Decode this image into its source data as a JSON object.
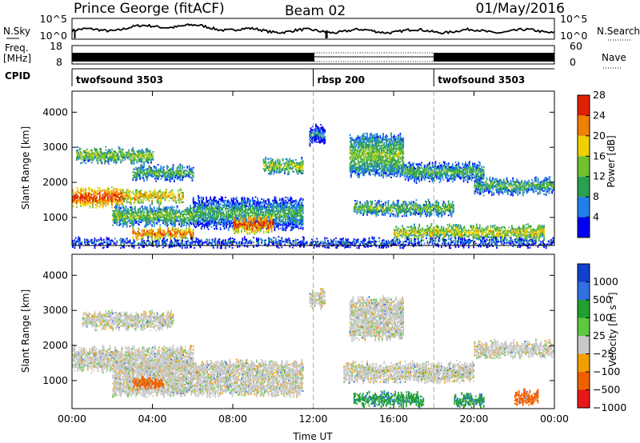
{
  "header": {
    "station": "Prince George (fitACF)",
    "beam": "Beam 02",
    "date": "01/May/2016"
  },
  "chart_data": [
    {
      "type": "line",
      "panel": "noise",
      "left_label": "N.Sky",
      "right_label": "N.Search",
      "left_ticks": [
        "10^5",
        "10^0"
      ],
      "right_ticks": [
        "10^5",
        "10^0"
      ]
    },
    {
      "type": "bar",
      "panel": "frequency",
      "left_label_lines": [
        "Freq.",
        "[MHz]"
      ],
      "left_ticks": [
        "18",
        "8"
      ],
      "right_label": "Nave",
      "right_ticks": [
        "60",
        "0"
      ],
      "segments": [
        {
          "start_hours": 0.0,
          "end_hours": 12.05,
          "freq_mhz": 10.5,
          "nave": 30
        },
        {
          "start_hours": 12.05,
          "end_hours": 18.0,
          "freq_mhz": 10.5,
          "nave": 0
        },
        {
          "start_hours": 18.0,
          "end_hours": 24.0,
          "freq_mhz": 10.5,
          "nave": 30
        }
      ]
    },
    {
      "type": "table",
      "panel": "cpid",
      "label": "CPID",
      "entries": [
        {
          "start_hours": 0.0,
          "label": "twofsound 3503"
        },
        {
          "start_hours": 12.0,
          "label": "rbsp 200"
        },
        {
          "start_hours": 18.0,
          "label": "twofsound 3503"
        }
      ]
    },
    {
      "type": "heatmap",
      "panel": "power",
      "ylabel": "Slant Range [km]",
      "y_ticks": [
        "1000",
        "2000",
        "3000",
        "4000"
      ],
      "ylim": [
        200,
        4600
      ],
      "colorbar_label": "Power [dB]",
      "colorbar_ticks": [
        "4",
        "8",
        "12",
        "16",
        "20",
        "24",
        "28"
      ],
      "colorbar_colors": [
        "#0000f0",
        "#2080e8",
        "#2aa050",
        "#70c030",
        "#f0d000",
        "#f08000",
        "#e02000"
      ],
      "echo_bands": [
        {
          "t0": 0.0,
          "t1": 2.5,
          "r0": 1350,
          "r1": 1750,
          "db": 27
        },
        {
          "t0": 2.5,
          "t1": 5.5,
          "r0": 1450,
          "r1": 1700,
          "db": 22
        },
        {
          "t0": 0.2,
          "t1": 4.0,
          "r0": 2600,
          "r1": 2900,
          "db": 17
        },
        {
          "t0": 3.0,
          "t1": 6.0,
          "r0": 2100,
          "r1": 2400,
          "db": 14
        },
        {
          "t0": 2.0,
          "t1": 6.0,
          "r0": 800,
          "r1": 1250,
          "db": 15
        },
        {
          "t0": 6.0,
          "t1": 11.5,
          "r0": 700,
          "r1": 1500,
          "db": 12
        },
        {
          "t0": 8.0,
          "t1": 10.0,
          "r0": 600,
          "r1": 950,
          "db": 26
        },
        {
          "t0": 3.0,
          "t1": 6.0,
          "r0": 400,
          "r1": 650,
          "db": 25
        },
        {
          "t0": 9.5,
          "t1": 11.5,
          "r0": 2300,
          "r1": 2600,
          "db": 17
        },
        {
          "t0": 11.8,
          "t1": 12.6,
          "r0": 3100,
          "r1": 3550,
          "db": 9
        },
        {
          "t0": 13.8,
          "t1": 16.5,
          "r0": 2200,
          "r1": 3300,
          "db": 15
        },
        {
          "t0": 16.5,
          "t1": 20.5,
          "r0": 2050,
          "r1": 2500,
          "db": 13
        },
        {
          "t0": 14.0,
          "t1": 19.0,
          "r0": 1100,
          "r1": 1400,
          "db": 15
        },
        {
          "t0": 20.0,
          "t1": 24.0,
          "r0": 1700,
          "r1": 2050,
          "db": 14
        },
        {
          "t0": 16.0,
          "t1": 23.5,
          "r0": 400,
          "r1": 700,
          "db": 19
        },
        {
          "t0": 0.0,
          "t1": 24.0,
          "r0": 200,
          "r1": 330,
          "db": 9
        }
      ]
    },
    {
      "type": "heatmap",
      "panel": "velocity",
      "ylabel": "Slant Range [km]",
      "y_ticks": [
        "1000",
        "2000",
        "3000",
        "4000"
      ],
      "ylim": [
        200,
        4600
      ],
      "xlabel": "Time UT",
      "x_ticks": [
        "00:00",
        "04:00",
        "08:00",
        "12:00",
        "16:00",
        "20:00",
        "00:00"
      ],
      "xlim_hours": [
        0,
        24
      ],
      "colorbar_label": "Velocity [m s⁻¹]",
      "colorbar_ticks": [
        "1000",
        "500",
        "100",
        "25",
        "−25",
        "−100",
        "−500",
        "−1000"
      ],
      "colorbar_colors": [
        "#1040d0",
        "#3070e0",
        "#20a030",
        "#60c840",
        "#c8c8c8",
        "#f0a000",
        "#f06000",
        "#e81818"
      ],
      "echo_bands": [
        {
          "t0": 0.0,
          "t1": 6.0,
          "r0": 1300,
          "r1": 1900,
          "v": 0
        },
        {
          "t0": 0.5,
          "t1": 5.0,
          "r0": 2500,
          "r1": 2900,
          "v": 0
        },
        {
          "t0": 2.0,
          "t1": 11.5,
          "r0": 600,
          "r1": 1500,
          "v": 0
        },
        {
          "t0": 3.0,
          "t1": 4.5,
          "r0": 800,
          "r1": 1050,
          "v": -300
        },
        {
          "t0": 11.8,
          "t1": 12.6,
          "r0": 3100,
          "r1": 3550,
          "v": 0
        },
        {
          "t0": 13.8,
          "t1": 16.5,
          "r0": 2200,
          "r1": 3300,
          "v": 0
        },
        {
          "t0": 13.5,
          "t1": 20.0,
          "r0": 1000,
          "r1": 1450,
          "v": 0
        },
        {
          "t0": 20.0,
          "t1": 24.0,
          "r0": 1700,
          "r1": 2050,
          "v": 0
        },
        {
          "t0": 14.0,
          "t1": 17.5,
          "r0": 300,
          "r1": 600,
          "v": 80
        },
        {
          "t0": 19.0,
          "t1": 20.5,
          "r0": 300,
          "r1": 550,
          "v": 80
        },
        {
          "t0": 22.0,
          "t1": 23.2,
          "r0": 350,
          "r1": 650,
          "v": -300
        }
      ]
    }
  ]
}
